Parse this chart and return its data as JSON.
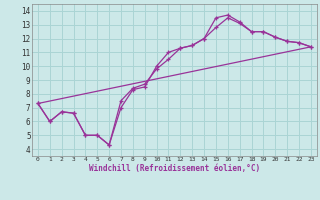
{
  "xlabel": "Windchill (Refroidissement éolien,°C)",
  "background_color": "#cce8e8",
  "grid_color": "#aad4d4",
  "line_color": "#993399",
  "xlim": [
    -0.5,
    23.5
  ],
  "ylim": [
    3.5,
    14.5
  ],
  "xticks": [
    0,
    1,
    2,
    3,
    4,
    5,
    6,
    7,
    8,
    9,
    10,
    11,
    12,
    13,
    14,
    15,
    16,
    17,
    18,
    19,
    20,
    21,
    22,
    23
  ],
  "yticks": [
    4,
    5,
    6,
    7,
    8,
    9,
    10,
    11,
    12,
    13,
    14
  ],
  "line1_x": [
    0,
    1,
    2,
    3,
    4,
    5,
    6,
    7,
    8,
    9,
    10,
    11,
    12,
    13,
    14,
    15,
    16,
    17,
    18,
    19,
    20,
    21,
    22,
    23
  ],
  "line1_y": [
    7.3,
    6.0,
    6.7,
    6.6,
    5.0,
    5.0,
    4.3,
    7.0,
    8.3,
    8.5,
    10.0,
    11.0,
    11.3,
    11.5,
    12.0,
    12.8,
    13.5,
    13.1,
    12.5,
    12.5,
    12.1,
    11.8,
    11.7,
    11.4
  ],
  "line2_x": [
    0,
    1,
    2,
    3,
    4,
    5,
    6,
    7,
    8,
    9,
    10,
    11,
    12,
    13,
    14,
    15,
    16,
    17,
    18,
    19,
    20,
    21,
    22,
    23
  ],
  "line2_y": [
    7.3,
    6.0,
    6.7,
    6.6,
    5.0,
    5.0,
    4.3,
    7.5,
    8.4,
    8.7,
    9.8,
    10.5,
    11.3,
    11.5,
    12.0,
    13.5,
    13.7,
    13.2,
    12.5,
    12.5,
    12.1,
    11.8,
    11.7,
    11.4
  ],
  "line3_x": [
    0,
    23
  ],
  "line3_y": [
    7.3,
    11.4
  ]
}
